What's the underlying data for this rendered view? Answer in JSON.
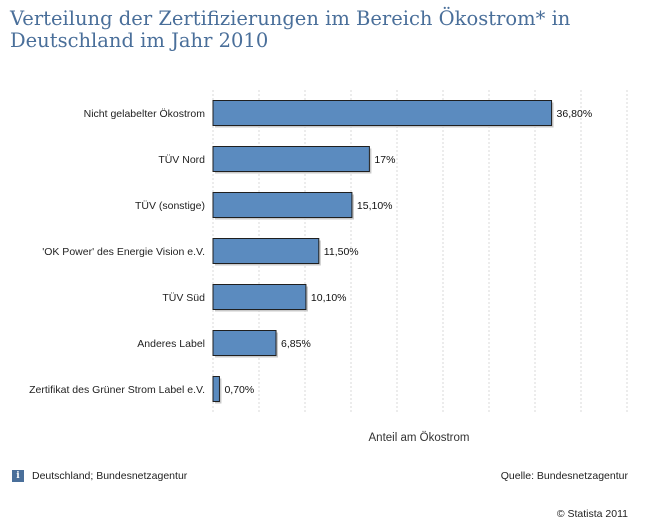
{
  "chart_data": {
    "type": "bar",
    "orientation": "horizontal",
    "title": "Verteilung der Zertifizierungen im Bereich Ökostrom* in Deutschland im Jahr 2010",
    "categories": [
      "Nicht gelabelter Ökostrom",
      "TÜV Nord",
      "TÜV (sonstige)",
      "'OK Power' des Energie Vision e.V.",
      "TÜV Süd",
      "Anderes Label",
      "Zertifikat des Grüner Strom Label e.V."
    ],
    "values": [
      36.8,
      17,
      15.1,
      11.5,
      10.1,
      6.85,
      0.7
    ],
    "value_labels": [
      "36,80%",
      "17%",
      "15,10%",
      "11,50%",
      "10,10%",
      "6,85%",
      "0,70%"
    ],
    "xlabel": "Anteil am Ökostrom",
    "xlim": [
      0,
      45
    ],
    "bar_color": "#5b8bbf",
    "grid": "vertical dashed"
  },
  "footer": {
    "left": "Deutschland; Bundesnetzagentur",
    "source": "Quelle: Bundesnetzagentur",
    "copyright": "© Statista 2011",
    "info_icon": "i"
  }
}
